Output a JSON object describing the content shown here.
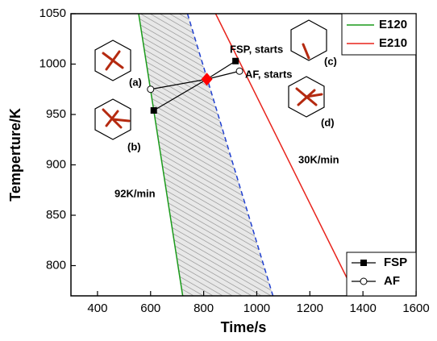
{
  "chart_data": {
    "type": "line",
    "x_label": "Time/s",
    "y_label": "Temperture/K",
    "xlim": [
      300,
      1600
    ],
    "ylim": [
      770,
      1050
    ],
    "xticks": [
      400,
      600,
      800,
      1000,
      1200,
      1400,
      1600
    ],
    "yticks": [
      800,
      850,
      900,
      950,
      1000,
      1050
    ],
    "series": [
      {
        "name": "E120",
        "color": "#1a9a1a",
        "x": [
          555,
          721
        ],
        "y": [
          1050,
          770
        ]
      },
      {
        "name": "E210",
        "color": "#e8241c",
        "x": [
          845,
          1373
        ],
        "y": [
          1050,
          770
        ]
      }
    ],
    "dashed_line": {
      "color": "#1f3fd0",
      "x": [
        739,
        1061
      ],
      "y": [
        1050,
        770
      ]
    },
    "points": [
      {
        "name": "FSP",
        "marker": "square",
        "x": [
          920,
          612
        ],
        "y": [
          1003,
          954
        ]
      },
      {
        "name": "AF",
        "marker": "circle",
        "x": [
          935,
          600
        ],
        "y": [
          993,
          975
        ]
      }
    ],
    "intersection": {
      "x": 812,
      "y": 985,
      "color": "#ff0000"
    },
    "annotations": [
      "FSP, starts",
      "AF, starts",
      "92K/min",
      "30K/min",
      "(a)",
      "(b)",
      "(c)",
      "(d)"
    ]
  }
}
